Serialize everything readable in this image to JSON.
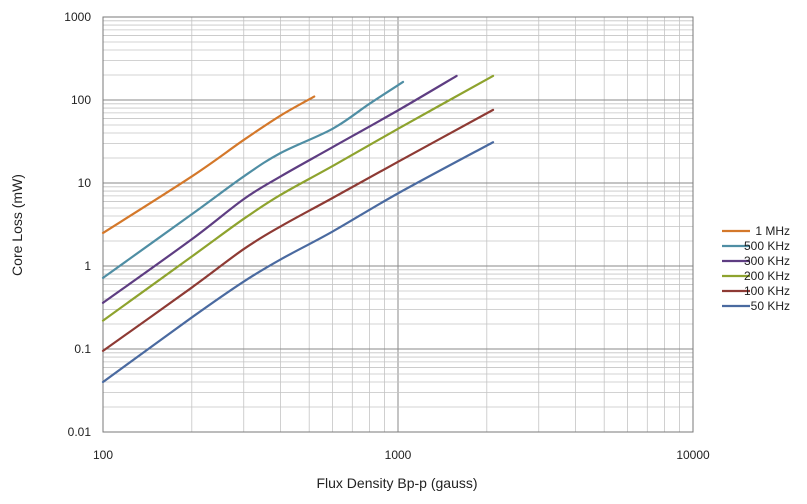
{
  "chart_data": {
    "type": "line",
    "xlabel": "Flux Density Bp-p (gauss)",
    "ylabel": "Core Loss (mW)",
    "xscale": "log",
    "yscale": "log",
    "xlim": [
      100,
      10000
    ],
    "ylim": [
      0.01,
      1000
    ],
    "x_tick_labels": [
      "100",
      "1000",
      "10000"
    ],
    "y_tick_labels": [
      "0.01",
      "0.1",
      "1",
      "10",
      "100",
      "1000"
    ],
    "grid": true,
    "legend_position": "right",
    "series": [
      {
        "name": "1 MHz",
        "color": "#d4782a",
        "points": [
          [
            100,
            2.5
          ],
          [
            200,
            12
          ],
          [
            300,
            33
          ],
          [
            400,
            65
          ],
          [
            520,
            110
          ]
        ]
      },
      {
        "name": "500 KHz",
        "color": "#4f8ea4",
        "points": [
          [
            100,
            0.72
          ],
          [
            200,
            4.2
          ],
          [
            300,
            12
          ],
          [
            400,
            23
          ],
          [
            600,
            45
          ],
          [
            800,
            90
          ],
          [
            1040,
            165
          ]
        ]
      },
      {
        "name": "300 KHz",
        "color": "#5e3d82",
        "points": [
          [
            100,
            0.36
          ],
          [
            200,
            2.1
          ],
          [
            300,
            6.4
          ],
          [
            400,
            12
          ],
          [
            600,
            27
          ],
          [
            1000,
            75
          ],
          [
            1580,
            195
          ]
        ]
      },
      {
        "name": "200 KHz",
        "color": "#8ea32e",
        "points": [
          [
            100,
            0.22
          ],
          [
            200,
            1.3
          ],
          [
            300,
            3.7
          ],
          [
            400,
            7.2
          ],
          [
            600,
            16
          ],
          [
            1000,
            45
          ],
          [
            2100,
            195
          ]
        ]
      },
      {
        "name": "100 KHz",
        "color": "#8e3a34",
        "points": [
          [
            100,
            0.095
          ],
          [
            200,
            0.55
          ],
          [
            300,
            1.6
          ],
          [
            400,
            3
          ],
          [
            600,
            6.6
          ],
          [
            1000,
            18
          ],
          [
            2100,
            76
          ]
        ]
      },
      {
        "name": "50 KHz",
        "color": "#4a6aa0",
        "points": [
          [
            100,
            0.04
          ],
          [
            200,
            0.24
          ],
          [
            300,
            0.65
          ],
          [
            400,
            1.2
          ],
          [
            600,
            2.6
          ],
          [
            1000,
            7.5
          ],
          [
            2100,
            31
          ]
        ]
      }
    ]
  }
}
